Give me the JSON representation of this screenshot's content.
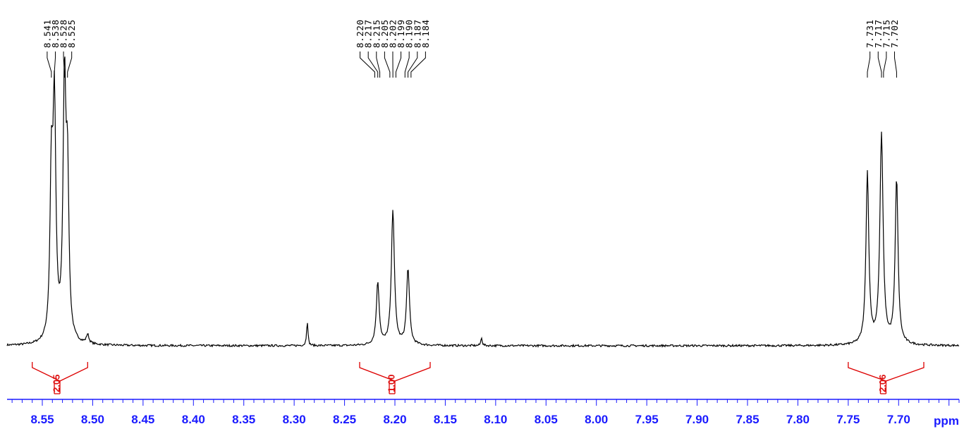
{
  "chart_data": {
    "type": "line",
    "xlabel": "ppm",
    "x_reversed": true,
    "xlim": [
      8.585,
      7.64
    ],
    "x_ticks": [
      "8.55",
      "8.50",
      "8.45",
      "8.40",
      "8.35",
      "8.30",
      "8.25",
      "8.20",
      "8.15",
      "8.10",
      "8.05",
      "8.00",
      "7.95",
      "7.90",
      "7.85",
      "7.80",
      "7.75",
      "7.70"
    ],
    "peak_labels": [
      "8.541",
      "8.538",
      "8.528",
      "8.525",
      "8.220",
      "8.217",
      "8.215",
      "8.205",
      "8.202",
      "8.199",
      "8.190",
      "8.187",
      "8.184",
      "7.731",
      "7.717",
      "7.715",
      "7.702"
    ],
    "integrals": [
      {
        "from": 8.56,
        "to": 8.505,
        "value": "2.05"
      },
      {
        "from": 8.235,
        "to": 8.165,
        "value": "1.00"
      },
      {
        "from": 7.75,
        "to": 7.675,
        "value": "2.06"
      }
    ],
    "peaks": [
      {
        "ppm": 8.541,
        "height": 0.615,
        "width": 0.0016
      },
      {
        "ppm": 8.538,
        "height": 0.9,
        "width": 0.0017
      },
      {
        "ppm": 8.528,
        "height": 0.99,
        "width": 0.0017
      },
      {
        "ppm": 8.525,
        "height": 0.6,
        "width": 0.0016
      },
      {
        "ppm": 8.505,
        "height": 0.035,
        "width": 0.0015
      },
      {
        "ppm": 8.287,
        "height": 0.098,
        "width": 0.0008
      },
      {
        "ppm": 8.217,
        "height": 0.245,
        "width": 0.0017
      },
      {
        "ppm": 8.202,
        "height": 0.53,
        "width": 0.0018
      },
      {
        "ppm": 8.187,
        "height": 0.3,
        "width": 0.0017
      },
      {
        "ppm": 8.114,
        "height": 0.033,
        "width": 0.0008
      },
      {
        "ppm": 7.731,
        "height": 0.67,
        "width": 0.0017
      },
      {
        "ppm": 7.717,
        "height": 0.82,
        "width": 0.0019
      },
      {
        "ppm": 7.702,
        "height": 0.65,
        "width": 0.0017
      }
    ],
    "colors": {
      "spectrum": "#000000",
      "axis": "#1a1aff",
      "integral": "#dd0000"
    }
  }
}
